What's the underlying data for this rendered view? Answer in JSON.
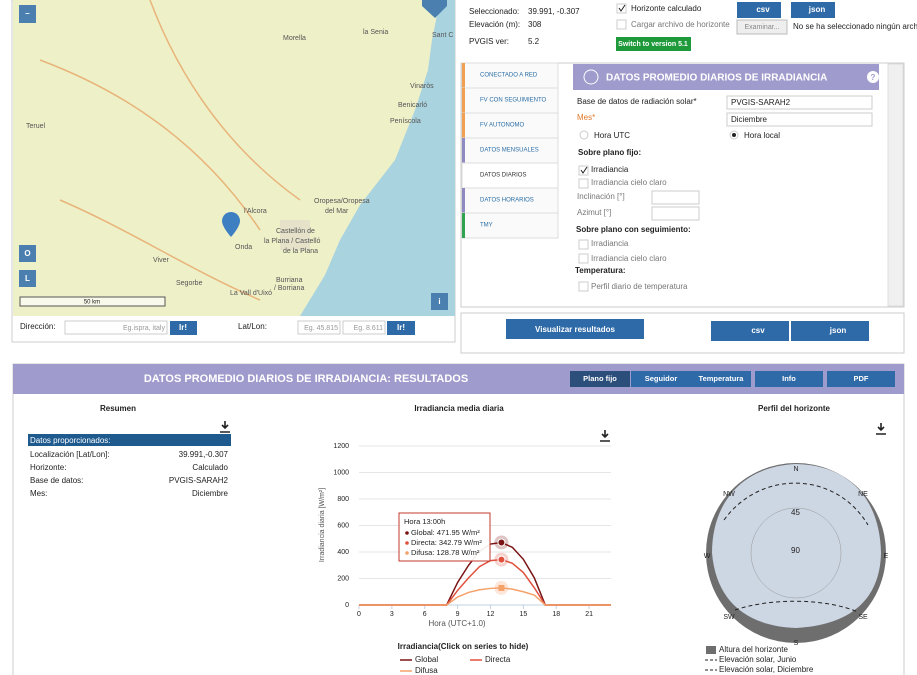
{
  "top_info": {
    "seleccionado_label": "Seleccionado:",
    "seleccionado": "39.991, -0.307",
    "elevacion_label": "Elevación (m):",
    "elevacion": "308",
    "version_label": "PVGIS ver:",
    "version": "5.2"
  },
  "horizon_options": {
    "calculado": "Horizonte calculado",
    "cargar": "Cargar archivo de horizonte",
    "switch": "Switch to version 5.1",
    "csv": "csv",
    "json": "json",
    "examinar": "Examinar...",
    "no_file": "No se ha seleccionado ningún archivo"
  },
  "map": {
    "labels": [
      "Morella",
      "la Senia",
      "Sant C",
      "Vinaròs",
      "Benicarló",
      "Peníscola",
      "Teruel",
      "l'Alcora",
      "Oropesa/Oropesa",
      "del Mar",
      "Castellón de",
      "la Plana / Castelló",
      "de la Plana",
      "Onda",
      "Viver",
      "Segorbe",
      "Burriana",
      "/ Borriana",
      "La Vall d'Uixó"
    ],
    "scale": "50 km",
    "buttons": [
      "–",
      "O",
      "L",
      "i"
    ]
  },
  "search": {
    "direccion_label": "Dirección:",
    "direccion_placeholder": "Eg.ispra, italy",
    "go": "Ir!",
    "latlon_label": "Lat/Lon:",
    "lat_placeholder": "Eg. 45.815",
    "lon_placeholder": "Eg. 8.611",
    "go2": "Ir!"
  },
  "tabs": [
    "CONECTADO A RED",
    "FV CON SEGUIMIENTO",
    "FV AUTONOMO",
    "DATOS MENSUALES",
    "DATOS DIARIOS",
    "DATOS HORARIOS",
    "TMY"
  ],
  "form": {
    "title": "DATOS PROMEDIO DIARIOS DE IRRADIANCIA",
    "help": "?",
    "db_label": "Base de datos de radiación solar*",
    "db": "PVGIS-SARAH2",
    "mes_label": "Mes*",
    "mes": "Diciembre",
    "utc": "Hora UTC",
    "local": "Hora local",
    "fijo": "Sobre plano fijo:",
    "irr": "Irradiancia",
    "irr_claro": "Irradiancia cielo claro",
    "incl": "Inclinación [°]",
    "azimut": "Azimut [°]",
    "seguimiento": "Sobre plano con seguimiento:",
    "irr2": "Irradiancia",
    "irr_claro2": "Irradiancia cielo claro",
    "temp": "Temperatura:",
    "perfil": "Perfil diario de temperatura"
  },
  "actions": {
    "visualizar": "Visualizar resultados",
    "csv": "csv",
    "json": "json"
  },
  "results": {
    "title": "DATOS PROMEDIO DIARIOS DE IRRADIANCIA: RESULTADOS",
    "buttons": [
      "Plano fijo",
      "Seguidor",
      "Temperatura",
      "Info",
      "PDF"
    ]
  },
  "summary": {
    "title": "Resumen",
    "header": "Datos proporcionados:",
    "rows": [
      [
        "Localización [Lat/Lon]:",
        "39.991,-0.307"
      ],
      [
        "Horizonte:",
        "Calculado"
      ],
      [
        "Base de datos:",
        "PVGIS-SARAH2"
      ],
      [
        "Mes:",
        "Diciembre"
      ]
    ]
  },
  "chart": {
    "type": "line",
    "title": "Irradiancia media diaria",
    "x_label": "Hora (UTC+1.0)",
    "y_label": "Irradiancia diaria [W/m²]",
    "x": [
      0,
      1,
      2,
      3,
      4,
      5,
      6,
      7,
      8,
      9,
      10,
      11,
      12,
      13,
      14,
      15,
      16,
      17,
      18,
      19,
      20,
      21,
      22,
      23
    ],
    "xlim": [
      0,
      23
    ],
    "xticks": [
      0,
      3,
      6,
      9,
      12,
      15,
      18,
      21
    ],
    "ylim": [
      0,
      1200
    ],
    "yticks": [
      0,
      200,
      400,
      600,
      800,
      1000,
      1200
    ],
    "series": [
      {
        "name": "Global",
        "color": "#7a1414",
        "values": [
          0,
          0,
          0,
          0,
          0,
          0,
          0,
          0,
          0,
          170,
          300,
          405,
          460,
          471.95,
          435,
          345,
          205,
          0,
          0,
          0,
          0,
          0,
          0,
          0
        ]
      },
      {
        "name": "Directa",
        "color": "#e0503c",
        "values": [
          0,
          0,
          0,
          0,
          0,
          0,
          0,
          0,
          0,
          110,
          205,
          290,
          335,
          342.79,
          315,
          245,
          130,
          0,
          0,
          0,
          0,
          0,
          0,
          0
        ]
      },
      {
        "name": "Difusa",
        "color": "#f5a16a",
        "values": [
          0,
          0,
          0,
          0,
          0,
          0,
          0,
          0,
          0,
          60,
          95,
          115,
          125,
          128.78,
          120,
          100,
          75,
          0,
          0,
          0,
          0,
          0,
          0,
          0
        ]
      }
    ],
    "legend_title": "Irradiancia(Click on series to hide)",
    "tooltip": {
      "title": "Hora 13:00h",
      "lines": [
        "Global: 471.95 W/m²",
        "Directa: 342.79 W/m²",
        "Difusa: 128.78 W/m²"
      ]
    }
  },
  "horizon": {
    "title": "Perfil del horizonte",
    "directions": [
      "N",
      "NE",
      "E",
      "SE",
      "S",
      "SW",
      "W",
      "NW"
    ],
    "rings": [
      "45",
      "90"
    ],
    "legend": [
      "Altura del horizonte",
      "Elevación solar, Junio",
      "Elevación solar, Diciembre"
    ]
  }
}
